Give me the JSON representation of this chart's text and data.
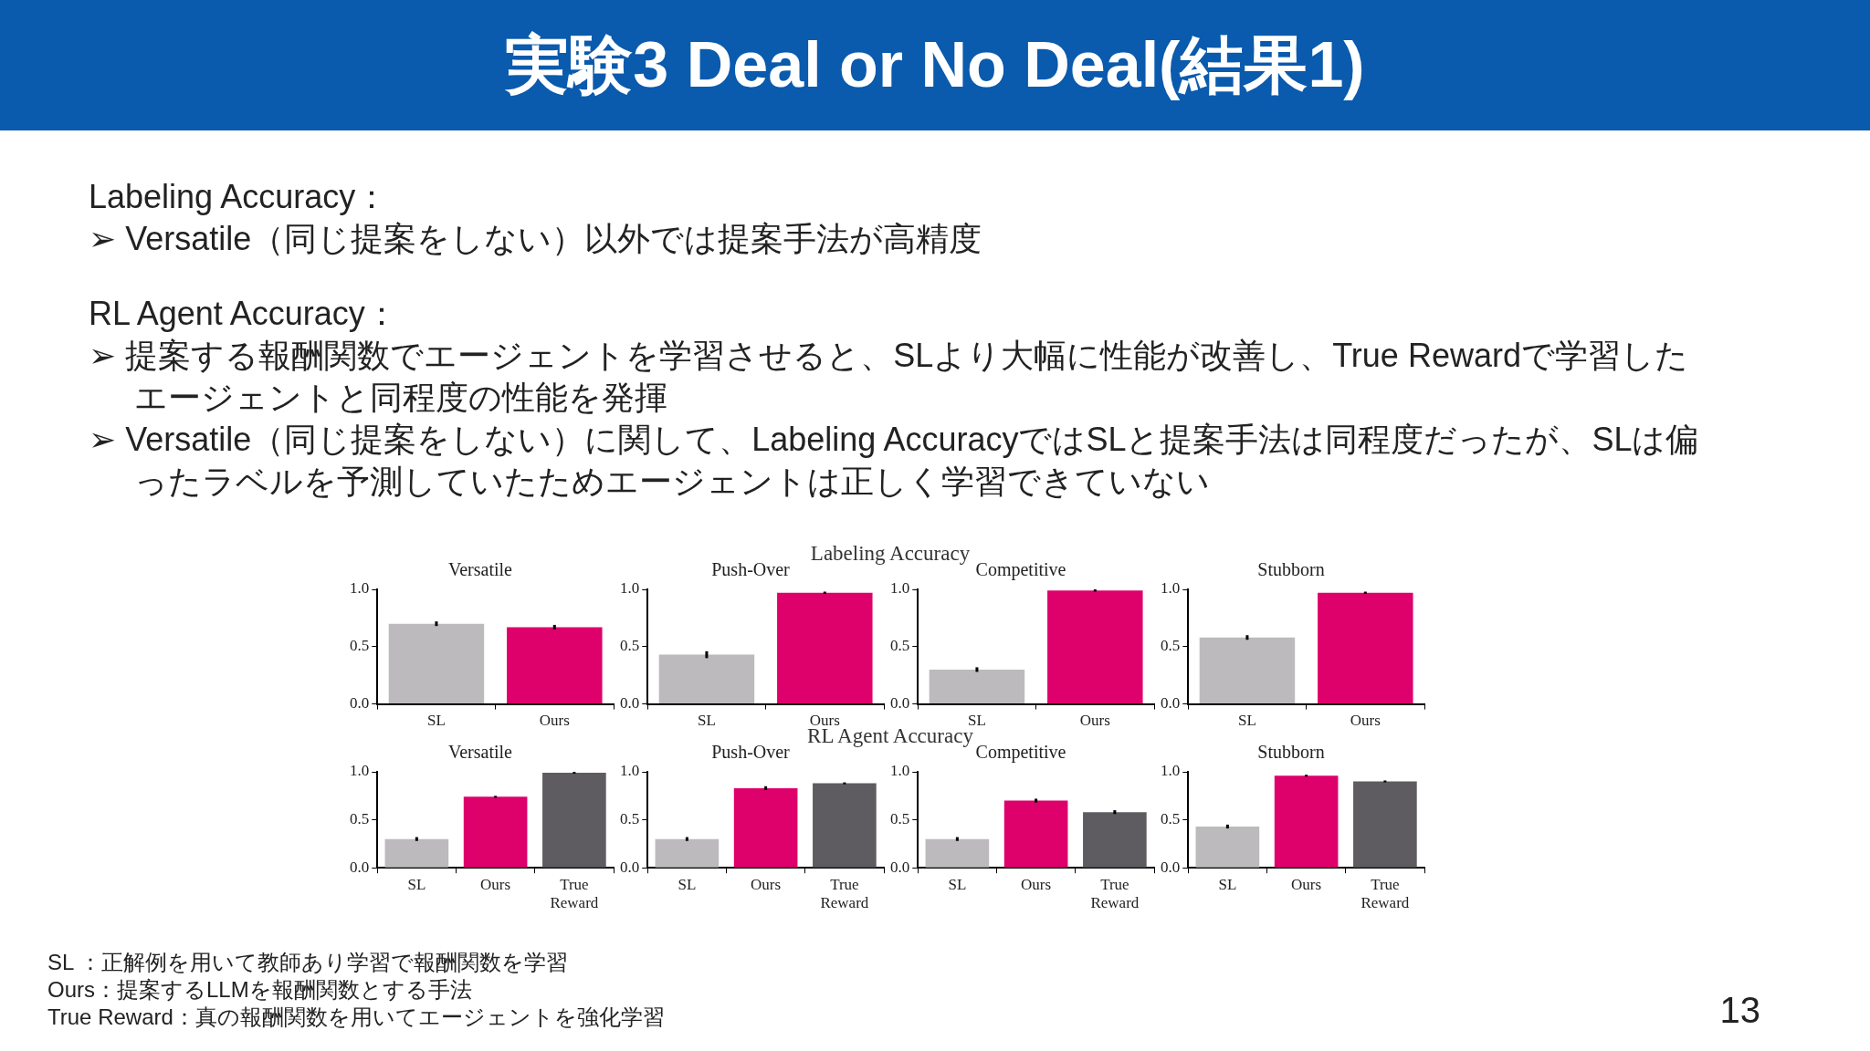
{
  "chart_data": [
    {
      "type": "other",
      "title": "実験3 Deal or No Deal(結果1)",
      "annotations": [
        "Labeling Accuracy：",
        "➢ Versatile（同じ提案をしない）以外では提案手法が高精度",
        "RL Agent Accuracy：",
        "➢ 提案する報酬関数でエージェントを学習させると、SLより大幅に性能が改善し、True Rewardで学習したエージェントと同程度の性能を発揮",
        "➢ Versatile（同じ提案をしない）に関して、Labeling AccuracyではSLと提案手法は同程度だったが、SLは偏ったラベルを予測していたためエージェントは正しく学習できていない"
      ]
    },
    {
      "type": "bar",
      "title": "Versatile",
      "annotations": [
        "Labeling Accuracy"
      ],
      "categories": [
        "SL",
        "Ours"
      ],
      "values": [
        0.7,
        0.67
      ],
      "errors": [
        0.02,
        0.02
      ],
      "colors": [
        "#bcbabc",
        "#de006b"
      ],
      "ylim": [
        0,
        1
      ],
      "yticks": [
        {
          "value": 0,
          "label": "0.0"
        },
        {
          "value": 0.5,
          "label": "0.5"
        },
        {
          "value": 1,
          "label": "1.0"
        }
      ],
      "grid": false,
      "legend": false
    },
    {
      "type": "bar",
      "title": "Push-Over",
      "categories": [
        "SL",
        "Ours"
      ],
      "values": [
        0.43,
        0.97
      ],
      "errors": [
        0.03,
        0.01
      ],
      "colors": [
        "#bcbabc",
        "#de006b"
      ],
      "ylim": [
        0,
        1
      ],
      "yticks": [
        {
          "value": 0,
          "label": "0.0"
        },
        {
          "value": 0.5,
          "label": "0.5"
        },
        {
          "value": 1,
          "label": "1.0"
        }
      ],
      "grid": false,
      "legend": false
    },
    {
      "type": "bar",
      "title": "Competitive",
      "categories": [
        "SL",
        "Ours"
      ],
      "values": [
        0.3,
        0.99
      ],
      "errors": [
        0.02,
        0.01
      ],
      "colors": [
        "#bcbabc",
        "#de006b"
      ],
      "ylim": [
        0,
        1
      ],
      "yticks": [
        {
          "value": 0,
          "label": "0.0"
        },
        {
          "value": 0.5,
          "label": "0.5"
        },
        {
          "value": 1,
          "label": "1.0"
        }
      ],
      "grid": false,
      "legend": false
    },
    {
      "type": "bar",
      "title": "Stubborn",
      "categories": [
        "SL",
        "Ours"
      ],
      "values": [
        0.58,
        0.97
      ],
      "errors": [
        0.02,
        0.01
      ],
      "colors": [
        "#bcbabc",
        "#de006b"
      ],
      "ylim": [
        0,
        1
      ],
      "yticks": [
        {
          "value": 0,
          "label": "0.0"
        },
        {
          "value": 0.5,
          "label": "0.5"
        },
        {
          "value": 1,
          "label": "1.0"
        }
      ],
      "grid": false,
      "legend": false
    },
    {
      "type": "bar",
      "title": "Versatile",
      "annotations": [
        "RL Agent Accuracy"
      ],
      "categories": [
        "SL",
        "Ours",
        "True Reward"
      ],
      "values": [
        0.3,
        0.74,
        0.99
      ],
      "errors": [
        0.02,
        0.01,
        0.01
      ],
      "colors": [
        "#bcbabc",
        "#de006b",
        "#5e5c60"
      ],
      "ylim": [
        0,
        1
      ],
      "yticks": [
        {
          "value": 0,
          "label": "0.0"
        },
        {
          "value": 0.5,
          "label": "0.5"
        },
        {
          "value": 1,
          "label": "1.0"
        }
      ],
      "grid": false,
      "legend": false
    },
    {
      "type": "bar",
      "title": "Push-Over",
      "categories": [
        "SL",
        "Ours",
        "True Reward"
      ],
      "values": [
        0.3,
        0.83,
        0.88
      ],
      "errors": [
        0.02,
        0.02,
        0.01
      ],
      "colors": [
        "#bcbabc",
        "#de006b",
        "#5e5c60"
      ],
      "ylim": [
        0,
        1
      ],
      "yticks": [
        {
          "value": 0,
          "label": "0.0"
        },
        {
          "value": 0.5,
          "label": "0.5"
        },
        {
          "value": 1,
          "label": "1.0"
        }
      ],
      "grid": false,
      "legend": false
    },
    {
      "type": "bar",
      "title": "Competitive",
      "categories": [
        "SL",
        "Ours",
        "True Reward"
      ],
      "values": [
        0.3,
        0.7,
        0.58
      ],
      "errors": [
        0.02,
        0.02,
        0.02
      ],
      "colors": [
        "#bcbabc",
        "#de006b",
        "#5e5c60"
      ],
      "ylim": [
        0,
        1
      ],
      "yticks": [
        {
          "value": 0,
          "label": "0.0"
        },
        {
          "value": 0.5,
          "label": "0.5"
        },
        {
          "value": 1,
          "label": "1.0"
        }
      ],
      "grid": false,
      "legend": false
    },
    {
      "type": "bar",
      "title": "Stubborn",
      "categories": [
        "SL",
        "Ours",
        "True Reward"
      ],
      "values": [
        0.43,
        0.96,
        0.9
      ],
      "errors": [
        0.02,
        0.01,
        0.01
      ],
      "colors": [
        "#bcbabc",
        "#de006b",
        "#5e5c60"
      ],
      "ylim": [
        0,
        1
      ],
      "yticks": [
        {
          "value": 0,
          "label": "0.0"
        },
        {
          "value": 0.5,
          "label": "0.5"
        },
        {
          "value": 1,
          "label": "1.0"
        }
      ],
      "grid": false,
      "legend": false
    },
    {
      "type": "other",
      "annotations": [
        "SL ：正解例を用いて教師あり学習で報酬関数を学習",
        "Ours：提案するLLMを報酬関数とする手法",
        "True Reward：真の報酬関数を用いてエージェントを強化学習",
        "13"
      ]
    }
  ]
}
